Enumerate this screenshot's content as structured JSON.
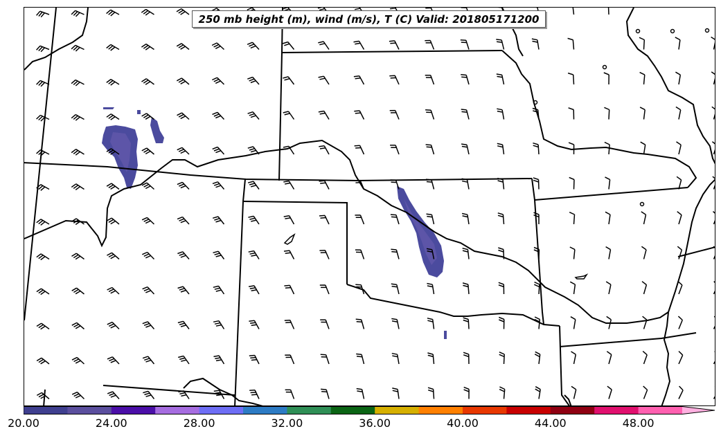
{
  "title": "250 mb height (m), wind (m/s), T (C) Valid: 201805171200",
  "colorbar": {
    "tick_labels": [
      "20.00",
      "24.00",
      "28.00",
      "32.00",
      "36.00",
      "40.00",
      "44.00",
      "48.00"
    ],
    "colors": [
      "#3f3f8f",
      "#5b4f9e",
      "#4b0fa8",
      "#a66de0",
      "#6e6ef5",
      "#2d7bc4",
      "#2f8f56",
      "#0a6414",
      "#d6b000",
      "#ff8000",
      "#e83800",
      "#c80000",
      "#8f0012",
      "#e0106e",
      "#ff60b0",
      "#ffb0e0"
    ]
  },
  "shading": {
    "color": "#4b4b9e",
    "inner_color": "#5d55a8"
  }
}
